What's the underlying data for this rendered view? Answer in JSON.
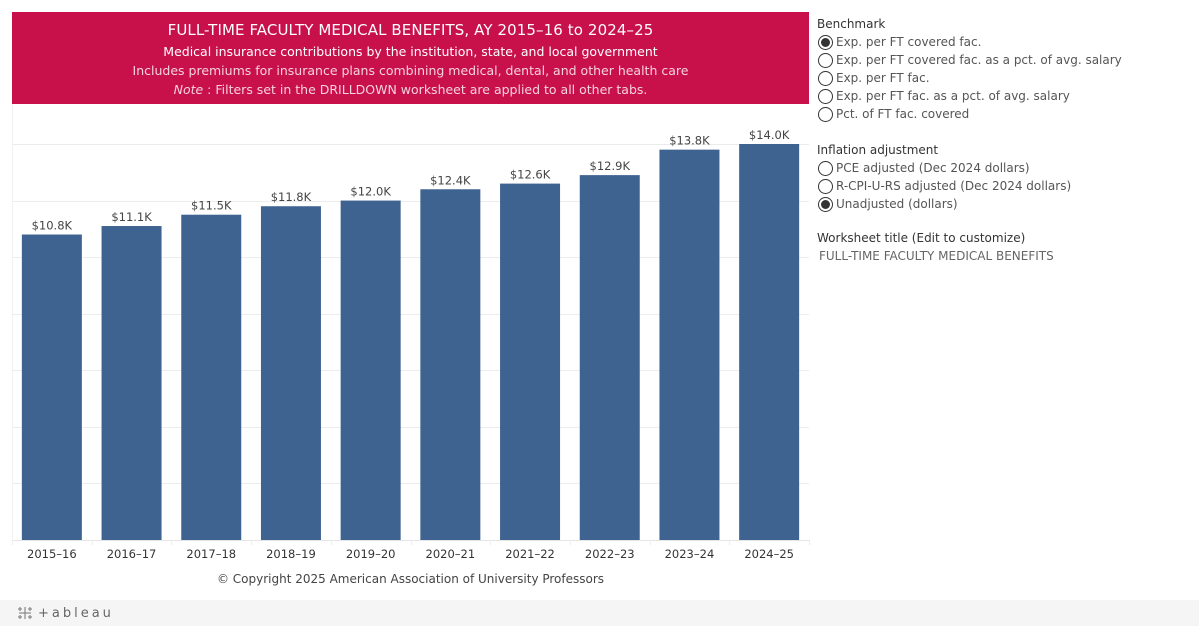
{
  "banner": {
    "title": "FULL-TIME FACULTY MEDICAL BENEFITS, AY 2015–16 to 2024–25",
    "subtitle": "Medical insurance contributions by the institution, state, and local government",
    "description": "Includes premiums for insurance plans combining medical, dental, and other health care",
    "note_label": "Note",
    "note_text": " : Filters set in the DRILLDOWN worksheet are applied to all other tabs.",
    "background_color": "#c8104a"
  },
  "chart_data": {
    "type": "bar",
    "title": "FULL-TIME FACULTY MEDICAL BENEFITS, AY 2015–16 to 2024–25",
    "xlabel": "",
    "ylabel": "",
    "categories": [
      "2015–16",
      "2016–17",
      "2017–18",
      "2018–19",
      "2019–20",
      "2020–21",
      "2021–22",
      "2022–23",
      "2023–24",
      "2024–25"
    ],
    "values": [
      10800,
      11100,
      11500,
      11800,
      12000,
      12400,
      12600,
      12900,
      13800,
      14000
    ],
    "data_labels": [
      "$10.8K",
      "$11.1K",
      "$11.5K",
      "$11.8K",
      "$12.0K",
      "$12.4K",
      "$12.6K",
      "$12.9K",
      "$13.8K",
      "$14.0K"
    ],
    "ylim": [
      0,
      14000
    ],
    "y_gridline_step": 2000,
    "y_tick_labels_shown": false,
    "grid": true,
    "legend": "none",
    "bar_color": "#3f6390"
  },
  "copyright": "© Copyright 2025 American Association of University Professors",
  "sidebar": {
    "benchmark": {
      "label": "Benchmark",
      "options": [
        {
          "label": "Exp. per FT covered fac.",
          "selected": true
        },
        {
          "label": "Exp. per FT covered fac. as a pct. of avg. salary",
          "selected": false
        },
        {
          "label": "Exp. per FT fac.",
          "selected": false
        },
        {
          "label": "Exp. per FT fac. as a pct. of avg. salary",
          "selected": false
        },
        {
          "label": "Pct. of FT fac. covered",
          "selected": false
        }
      ]
    },
    "inflation": {
      "label": "Inflation adjustment",
      "options": [
        {
          "label": "PCE adjusted (Dec 2024 dollars)",
          "selected": false
        },
        {
          "label": "R-CPI-U-RS adjusted (Dec 2024 dollars)",
          "selected": false
        },
        {
          "label": "Unadjusted (dollars)",
          "selected": true
        }
      ]
    },
    "worksheet_title": {
      "label": "Worksheet title (Edit to customize)",
      "value": "FULL-TIME FACULTY MEDICAL BENEFITS"
    }
  },
  "footer": {
    "logo_text": "+ableau",
    "logo_icon": "tableau-logo-icon"
  }
}
